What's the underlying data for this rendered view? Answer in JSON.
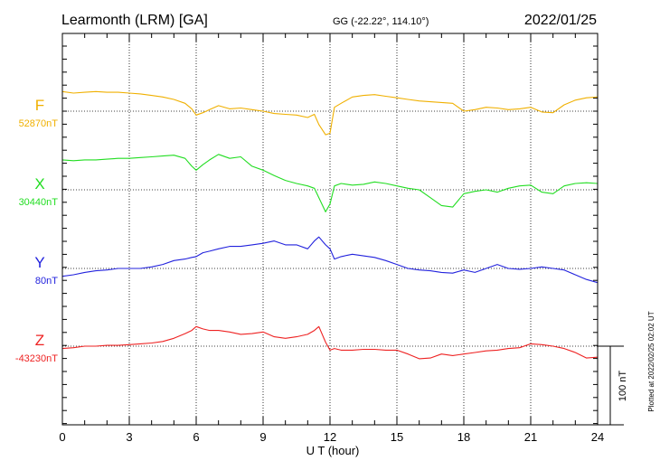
{
  "header": {
    "station": "Learmonth (LRM)  [GA]",
    "coords": "GG (-22.22°, 114.10°)",
    "date": "2022/01/25"
  },
  "footer_note": "Plotted at 2022/02/25 02:02 UT",
  "chart_data": {
    "type": "line",
    "xlabel": "U T (hour)",
    "xlim": [
      0,
      24
    ],
    "x_ticks": [
      "0",
      "3",
      "6",
      "9",
      "12",
      "15",
      "18",
      "21",
      "24"
    ],
    "y_scale_bar": "100 nT",
    "series": [
      {
        "name": "F",
        "baseline": "52870nT",
        "color": "#f0b000",
        "x": [
          0,
          0.5,
          1,
          1.5,
          2,
          2.5,
          3,
          3.5,
          4,
          4.5,
          5,
          5.5,
          5.8,
          6,
          6.3,
          6.6,
          7,
          7.5,
          8,
          8.5,
          9,
          9.5,
          10,
          10.5,
          11,
          11.3,
          11.5,
          11.8,
          12,
          12.2,
          12.5,
          13,
          13.5,
          14,
          14.5,
          15,
          15.5,
          16,
          16.5,
          17,
          17.5,
          18,
          18.5,
          19,
          19.5,
          20,
          20.5,
          21,
          21.5,
          22,
          22.5,
          23,
          23.5,
          24
        ],
        "y": [
          25,
          23,
          24,
          25,
          24,
          24,
          23,
          22,
          20,
          18,
          15,
          10,
          3,
          -5,
          -2,
          2,
          7,
          3,
          4,
          2,
          0,
          -3,
          -4,
          -5,
          -8,
          -4,
          -17,
          -30,
          -28,
          5,
          10,
          18,
          20,
          21,
          19,
          17,
          15,
          13,
          12,
          11,
          10,
          0,
          2,
          5,
          4,
          2,
          3,
          5,
          -1,
          -2,
          8,
          14,
          17,
          18
        ]
      },
      {
        "name": "X",
        "baseline": "30440nT",
        "color": "#22dd22",
        "x": [
          0,
          0.5,
          1,
          1.5,
          2,
          2.5,
          3,
          3.5,
          4,
          4.5,
          5,
          5.5,
          5.8,
          6,
          6.3,
          6.6,
          7,
          7.5,
          8,
          8.5,
          9,
          9.5,
          10,
          10.5,
          11,
          11.3,
          11.5,
          11.8,
          12,
          12.2,
          12.5,
          13,
          13.5,
          14,
          14.5,
          15,
          15.5,
          16,
          16.5,
          17,
          17.5,
          18,
          18.5,
          19,
          19.5,
          20,
          20.5,
          21,
          21.5,
          22,
          22.5,
          23,
          23.5,
          24
        ],
        "y": [
          38,
          37,
          38,
          38,
          39,
          40,
          40,
          41,
          42,
          43,
          44,
          40,
          30,
          25,
          32,
          38,
          45,
          40,
          42,
          30,
          25,
          18,
          12,
          8,
          5,
          2,
          -10,
          -28,
          -18,
          5,
          8,
          6,
          7,
          10,
          8,
          5,
          2,
          0,
          -10,
          -20,
          -22,
          -5,
          -2,
          0,
          -3,
          2,
          5,
          6,
          -3,
          -5,
          5,
          8,
          9,
          8
        ]
      },
      {
        "name": "Y",
        "baseline": "80nT",
        "color": "#2222dd",
        "x": [
          0,
          0.5,
          1,
          1.5,
          2,
          2.5,
          3,
          3.5,
          4,
          4.5,
          5,
          5.5,
          5.8,
          6,
          6.3,
          6.6,
          7,
          7.5,
          8,
          8.5,
          9,
          9.5,
          10,
          10.5,
          11,
          11.3,
          11.5,
          11.8,
          12,
          12.2,
          12.5,
          13,
          13.5,
          14,
          14.5,
          15,
          15.5,
          16,
          16.5,
          17,
          17.5,
          18,
          18.5,
          19,
          19.5,
          20,
          20.5,
          21,
          21.5,
          22,
          22.5,
          23,
          23.5,
          24
        ],
        "y": [
          -10,
          -8,
          -5,
          -3,
          -2,
          0,
          0,
          0,
          2,
          5,
          10,
          12,
          14,
          15,
          20,
          22,
          25,
          28,
          28,
          30,
          32,
          35,
          30,
          30,
          25,
          35,
          40,
          30,
          25,
          12,
          15,
          18,
          16,
          14,
          10,
          5,
          0,
          -2,
          -3,
          -5,
          -6,
          -2,
          -5,
          0,
          5,
          0,
          -1,
          0,
          2,
          0,
          -2,
          -8,
          -14,
          -18
        ]
      },
      {
        "name": "Z",
        "baseline": "-43230nT",
        "color": "#ee2222",
        "x": [
          0,
          0.5,
          1,
          1.5,
          2,
          2.5,
          3,
          3.5,
          4,
          4.5,
          5,
          5.5,
          5.8,
          6,
          6.3,
          6.6,
          7,
          7.5,
          8,
          8.5,
          9,
          9.5,
          10,
          10.5,
          11,
          11.3,
          11.5,
          11.8,
          12,
          12.2,
          12.5,
          13,
          13.5,
          14,
          14.5,
          15,
          15.5,
          16,
          16.5,
          17,
          17.5,
          18,
          18.5,
          19,
          19.5,
          20,
          20.5,
          21,
          21.5,
          22,
          22.5,
          23,
          23.5,
          24
        ],
        "y": [
          -3,
          -2,
          0,
          0,
          1,
          1,
          2,
          3,
          4,
          6,
          10,
          16,
          20,
          25,
          22,
          20,
          20,
          18,
          15,
          16,
          18,
          12,
          10,
          12,
          15,
          20,
          25,
          5,
          -5,
          -3,
          -5,
          -5,
          -4,
          -4,
          -5,
          -5,
          -10,
          -16,
          -15,
          -10,
          -12,
          -10,
          -8,
          -6,
          -5,
          -3,
          -2,
          3,
          2,
          0,
          -3,
          -8,
          -15,
          -14
        ]
      }
    ]
  }
}
